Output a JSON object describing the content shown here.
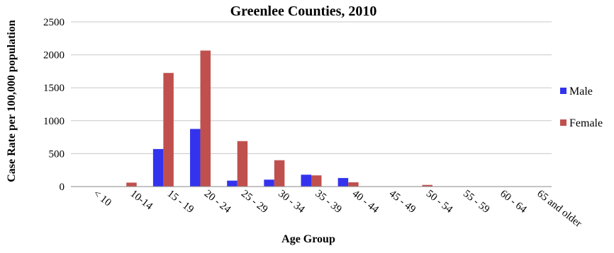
{
  "chart_data": {
    "type": "bar",
    "title": "Greenlee Counties, 2010",
    "xlabel": "Age Group",
    "ylabel": "Case Rate per 100,000 population",
    "ylim": [
      0,
      2500
    ],
    "yticks": [
      0,
      500,
      1000,
      1500,
      2000,
      2500
    ],
    "grid": true,
    "legend_position": "right",
    "categories": [
      "< 10",
      "10-14",
      "15 - 19",
      "20 - 24",
      "25 - 29",
      "30 - 34",
      "35 - 39",
      "40 - 44",
      "45 - 49",
      "50 - 54",
      "55 - 59",
      "60 - 64",
      "65 and older"
    ],
    "series": [
      {
        "name": "Male",
        "color": "#3333ee",
        "values": [
          0,
          0,
          570,
          875,
          90,
          105,
          180,
          130,
          0,
          0,
          0,
          0,
          0
        ]
      },
      {
        "name": "Female",
        "color": "#c0504d",
        "values": [
          0,
          60,
          1725,
          2065,
          690,
          400,
          170,
          65,
          0,
          25,
          0,
          0,
          0
        ]
      }
    ]
  }
}
